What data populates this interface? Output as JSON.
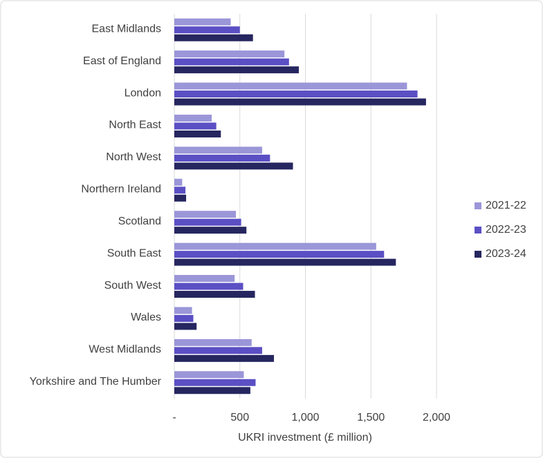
{
  "chart_data": {
    "type": "bar",
    "orientation": "horizontal",
    "x_label": "UKRI investment (£ million)",
    "categories": [
      "East Midlands",
      "East of England",
      "London",
      "North East",
      "North West",
      "Northern Ireland",
      "Scotland",
      "South East",
      "South West",
      "Wales",
      "West Midlands",
      "Yorkshire and The Humber"
    ],
    "series": [
      {
        "name": "2021-22",
        "color": "#9b96d8",
        "values": [
          430,
          840,
          1775,
          285,
          670,
          60,
          470,
          1540,
          460,
          135,
          590,
          530
        ]
      },
      {
        "name": "2022-23",
        "color": "#5b4fc4",
        "values": [
          500,
          875,
          1855,
          320,
          730,
          85,
          510,
          1600,
          525,
          145,
          670,
          620
        ]
      },
      {
        "name": "2023-24",
        "color": "#262660",
        "values": [
          600,
          950,
          1920,
          355,
          905,
          90,
          550,
          1690,
          615,
          170,
          760,
          580
        ]
      }
    ],
    "xlim": [
      0,
      2100
    ],
    "xticks": [
      {
        "value": 0,
        "label": "-"
      },
      500,
      {
        "value": 1000,
        "label": "1,000"
      },
      {
        "value": 1500,
        "label": "1,500"
      },
      {
        "value": 2000,
        "label": "2,000"
      }
    ],
    "grid": true,
    "legend": "right"
  }
}
